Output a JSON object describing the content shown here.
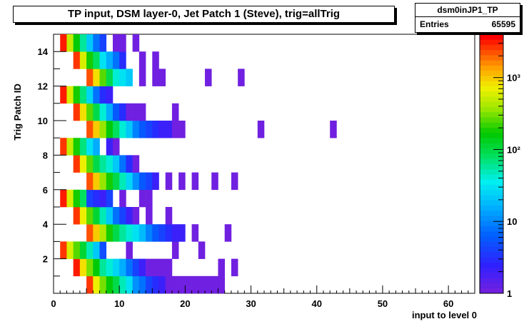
{
  "chart_data": {
    "type": "heatmap",
    "title": "TP input, DSM layer-0, Jet Patch 1 (Steve), trig=allTrig",
    "xlabel": "input to level 0",
    "ylabel": "Trig Patch ID",
    "xlim": [
      0,
      64
    ],
    "ylim": [
      0,
      15
    ],
    "x_ticks": [
      0,
      10,
      20,
      30,
      40,
      50,
      60
    ],
    "y_ticks": [
      2,
      4,
      6,
      8,
      10,
      12,
      14
    ],
    "z_scale": "log",
    "z_range": [
      1,
      4000
    ],
    "z_ticks": [
      {
        "label": "1",
        "value": 1
      },
      {
        "label": "10",
        "value": 10
      },
      {
        "label": "10²",
        "value": 100
      },
      {
        "label": "10³",
        "value": 1000
      }
    ],
    "stats": {
      "name": "dsm0inJP1_TP",
      "entries_label": "Entries",
      "entries": "65595"
    },
    "rows": [
      {
        "patch": 0,
        "cells": [
          [
            5,
            2500
          ],
          [
            6,
            700
          ],
          [
            7,
            300
          ],
          [
            8,
            150
          ],
          [
            9,
            90
          ],
          [
            10,
            50
          ],
          [
            11,
            30
          ],
          [
            12,
            12
          ],
          [
            13,
            8
          ],
          [
            14,
            4
          ],
          [
            15,
            3
          ],
          [
            16,
            2
          ],
          [
            17,
            1
          ],
          [
            18,
            1
          ],
          [
            19,
            1
          ],
          [
            20,
            1
          ],
          [
            21,
            1
          ],
          [
            22,
            1
          ],
          [
            23,
            1
          ],
          [
            24,
            1
          ],
          [
            25,
            1
          ]
        ]
      },
      {
        "patch": 1,
        "cells": [
          [
            3,
            3000
          ],
          [
            4,
            800
          ],
          [
            5,
            300
          ],
          [
            6,
            150
          ],
          [
            7,
            60
          ],
          [
            8,
            40
          ],
          [
            9,
            25
          ],
          [
            10,
            15
          ],
          [
            11,
            8
          ],
          [
            12,
            4
          ],
          [
            13,
            2
          ],
          [
            14,
            1
          ],
          [
            15,
            1
          ],
          [
            16,
            1
          ],
          [
            17,
            1
          ],
          [
            25,
            1
          ],
          [
            27,
            1
          ]
        ]
      },
      {
        "patch": 2,
        "cells": [
          [
            1,
            2800
          ],
          [
            2,
            600
          ],
          [
            3,
            250
          ],
          [
            4,
            120
          ],
          [
            5,
            50
          ],
          [
            6,
            20
          ],
          [
            7,
            5
          ],
          [
            11,
            1
          ],
          [
            18,
            1
          ],
          [
            22,
            1
          ]
        ]
      },
      {
        "patch": 3,
        "cells": [
          [
            5,
            2200
          ],
          [
            6,
            1000
          ],
          [
            7,
            400
          ],
          [
            8,
            200
          ],
          [
            9,
            100
          ],
          [
            10,
            60
          ],
          [
            11,
            40
          ],
          [
            12,
            30
          ],
          [
            13,
            18
          ],
          [
            14,
            10
          ],
          [
            15,
            6
          ],
          [
            16,
            4
          ],
          [
            17,
            3
          ],
          [
            18,
            2
          ],
          [
            19,
            2
          ],
          [
            21,
            1
          ],
          [
            26,
            1
          ]
        ]
      },
      {
        "patch": 4,
        "cells": [
          [
            3,
            2600
          ],
          [
            4,
            700
          ],
          [
            5,
            250
          ],
          [
            6,
            120
          ],
          [
            7,
            50
          ],
          [
            8,
            20
          ],
          [
            9,
            8
          ],
          [
            10,
            4
          ],
          [
            11,
            2
          ],
          [
            12,
            1
          ],
          [
            14,
            1
          ],
          [
            17,
            1
          ]
        ]
      },
      {
        "patch": 5,
        "cells": [
          [
            1,
            2900
          ],
          [
            2,
            600
          ],
          [
            3,
            200
          ],
          [
            4,
            80
          ],
          [
            5,
            4
          ],
          [
            6,
            3
          ],
          [
            7,
            2
          ],
          [
            8,
            4
          ],
          [
            10,
            1
          ],
          [
            13,
            1
          ],
          [
            14,
            1
          ]
        ]
      },
      {
        "patch": 6,
        "cells": [
          [
            5,
            2300
          ],
          [
            6,
            900
          ],
          [
            7,
            350
          ],
          [
            8,
            180
          ],
          [
            9,
            90
          ],
          [
            10,
            50
          ],
          [
            11,
            25
          ],
          [
            12,
            12
          ],
          [
            13,
            6
          ],
          [
            14,
            4
          ],
          [
            15,
            2
          ],
          [
            17,
            1
          ],
          [
            19,
            1
          ],
          [
            21,
            1
          ],
          [
            24,
            1
          ],
          [
            27,
            1
          ]
        ]
      },
      {
        "patch": 7,
        "cells": [
          [
            3,
            2500
          ],
          [
            4,
            700
          ],
          [
            5,
            250
          ],
          [
            6,
            100
          ],
          [
            7,
            60
          ],
          [
            8,
            40
          ],
          [
            9,
            20
          ],
          [
            10,
            8
          ],
          [
            11,
            3
          ],
          [
            12,
            1
          ]
        ]
      },
      {
        "patch": 8,
        "cells": [
          [
            1,
            2700
          ],
          [
            2,
            500
          ],
          [
            3,
            180
          ],
          [
            4,
            70
          ],
          [
            5,
            30
          ],
          [
            6,
            15
          ],
          [
            8,
            2
          ],
          [
            9,
            1
          ]
        ]
      },
      {
        "patch": 9,
        "cells": [
          [
            5,
            2400
          ],
          [
            6,
            900
          ],
          [
            7,
            350
          ],
          [
            8,
            150
          ],
          [
            9,
            80
          ],
          [
            10,
            40
          ],
          [
            11,
            20
          ],
          [
            12,
            10
          ],
          [
            13,
            6
          ],
          [
            14,
            4
          ],
          [
            15,
            3
          ],
          [
            16,
            2
          ],
          [
            17,
            2
          ],
          [
            18,
            1
          ],
          [
            19,
            1
          ],
          [
            31,
            1
          ],
          [
            42,
            1
          ]
        ]
      },
      {
        "patch": 10,
        "cells": [
          [
            3,
            2600
          ],
          [
            4,
            800
          ],
          [
            5,
            250
          ],
          [
            6,
            100
          ],
          [
            7,
            40
          ],
          [
            8,
            15
          ],
          [
            9,
            6
          ],
          [
            10,
            3
          ],
          [
            11,
            1
          ],
          [
            12,
            1
          ],
          [
            13,
            1
          ],
          [
            18,
            1
          ]
        ]
      },
      {
        "patch": 11,
        "cells": [
          [
            1,
            2900
          ],
          [
            2,
            600
          ],
          [
            3,
            180
          ],
          [
            4,
            70
          ],
          [
            5,
            25
          ],
          [
            6,
            8
          ],
          [
            7,
            3
          ],
          [
            8,
            2
          ]
        ]
      },
      {
        "patch": 12,
        "cells": [
          [
            5,
            2300
          ],
          [
            6,
            800
          ],
          [
            7,
            250
          ],
          [
            8,
            100
          ],
          [
            9,
            40
          ],
          [
            10,
            30
          ],
          [
            11,
            20
          ],
          [
            13,
            1
          ],
          [
            15,
            1
          ],
          [
            16,
            1
          ],
          [
            23,
            1
          ],
          [
            28,
            1
          ]
        ]
      },
      {
        "patch": 13,
        "cells": [
          [
            3,
            2600
          ],
          [
            4,
            600
          ],
          [
            5,
            200
          ],
          [
            6,
            80
          ],
          [
            7,
            30
          ],
          [
            8,
            15
          ],
          [
            9,
            8
          ],
          [
            10,
            3
          ],
          [
            13,
            1
          ],
          [
            15,
            1
          ]
        ]
      },
      {
        "patch": 14,
        "cells": [
          [
            1,
            3000
          ],
          [
            2,
            500
          ],
          [
            3,
            150
          ],
          [
            4,
            60
          ],
          [
            5,
            20
          ],
          [
            6,
            8
          ],
          [
            7,
            4
          ],
          [
            9,
            1
          ],
          [
            10,
            1
          ],
          [
            12,
            1
          ]
        ]
      }
    ]
  }
}
